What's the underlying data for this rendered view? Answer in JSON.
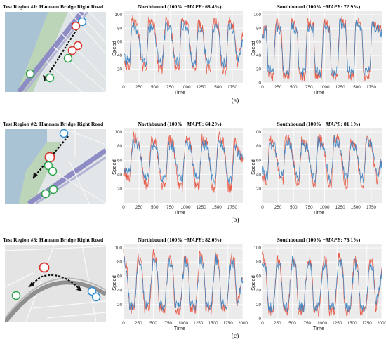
{
  "series_colors": {
    "ground_truth": "#e8533f",
    "prediction": "#3b84c2"
  },
  "regions": [
    {
      "title": "Test Region #1: Hannam Bridge Right Road",
      "caption": "(a)",
      "charts": [
        {
          "title": "Northbound (100% − MAPE: 68.4%)",
          "title_prefix": "Northbound (100%  −",
          "title_metric": "MAPE",
          "title_suffix": ": 68.4%)",
          "xlabel": "Time",
          "ylabel": "Speed",
          "xlim": [
            0,
            1920
          ],
          "ylim": [
            0,
            105
          ],
          "xticks": [
            0,
            250,
            500,
            750,
            1000,
            1250,
            1500,
            1750
          ],
          "yticks": [
            20,
            40,
            60,
            80,
            100
          ]
        },
        {
          "title": "Southbound (100% − MAPE: 72.9%)",
          "title_prefix": "Southbound (100%  −",
          "title_metric": "MAPE",
          "title_suffix": ": 72.9%)",
          "xlabel": "Time",
          "ylabel": "Speed",
          "xlim": [
            0,
            1920
          ],
          "ylim": [
            0,
            105
          ],
          "xticks": [
            0,
            250,
            500,
            750,
            1000,
            1250,
            1500,
            1750
          ],
          "yticks": [
            0,
            20,
            40,
            60,
            80,
            100
          ]
        }
      ]
    },
    {
      "title": "Test Region #2: Hannam Bridge Right Road",
      "caption": "(b)",
      "charts": [
        {
          "title": "Northbound (100% − MAPE: 64.2%)",
          "title_prefix": "Northbound (100%  −",
          "title_metric": "MAPE",
          "title_suffix": ": 64.2%)",
          "xlabel": "Time",
          "ylabel": "Speed",
          "xlim": [
            0,
            1920
          ],
          "ylim": [
            0,
            105
          ],
          "xticks": [
            0,
            250,
            500,
            750,
            1000,
            1250,
            1500,
            1750
          ],
          "yticks": [
            20,
            40,
            60,
            80,
            100
          ]
        },
        {
          "title": "Southbound (100% − MAPE: 81.1%)",
          "title_prefix": "Southbound (100%  −",
          "title_metric": "MAPE",
          "title_suffix": ": 81.1%)",
          "xlabel": "Time",
          "ylabel": "Speed",
          "xlim": [
            0,
            1920
          ],
          "ylim": [
            0,
            105
          ],
          "xticks": [
            0,
            250,
            500,
            750,
            1000,
            1250,
            1500,
            1750
          ],
          "yticks": [
            20,
            40,
            60,
            80,
            100
          ]
        }
      ]
    },
    {
      "title": "Test Region #3: Hannam Bridge Right Road",
      "caption": "(c)",
      "charts": [
        {
          "title": "Northbound (100% − MAPE: 82.0%)",
          "title_prefix": "Northbound (100%  −",
          "title_metric": "MAPE",
          "title_suffix": ": 82.0%)",
          "xlabel": "Time",
          "ylabel": "Speed",
          "xlim": [
            0,
            2000
          ],
          "ylim": [
            0,
            105
          ],
          "xticks": [
            0,
            250,
            500,
            750,
            1000,
            1250,
            1500,
            1750,
            2000
          ],
          "yticks": [
            20,
            40,
            60,
            80,
            100
          ]
        },
        {
          "title": "Southbound (100% − MAPE: 78.1%)",
          "title_prefix": "Southbound (100%  −",
          "title_metric": "MAPE",
          "title_suffix": ": 78.1%)",
          "xlabel": "Time",
          "ylabel": "Speed",
          "xlim": [
            0,
            2000
          ],
          "ylim": [
            0,
            105
          ],
          "xticks": [
            0,
            250,
            500,
            750,
            1000,
            1250,
            1500,
            1750,
            2000
          ],
          "yticks": [
            0,
            20,
            40,
            60,
            80,
            100
          ]
        }
      ]
    }
  ],
  "chart_data": [
    {
      "type": "line",
      "title": "Northbound (100% − MAPE: 68.4%)",
      "xlabel": "Time",
      "ylabel": "Speed",
      "xlim": [
        0,
        1920
      ],
      "ylim": [
        0,
        105
      ],
      "grid": true,
      "series": [
        {
          "color": "#e8533f",
          "x": [
            0,
            100,
            130,
            230,
            300,
            370,
            400,
            500,
            560,
            620,
            680,
            760,
            830,
            900,
            930,
            1040,
            1100,
            1160,
            1200,
            1270,
            1330,
            1400,
            1440,
            1530,
            1580,
            1650,
            1690,
            1780,
            1830,
            1920
          ],
          "y": [
            28,
            22,
            95,
            80,
            25,
            20,
            90,
            85,
            22,
            20,
            92,
            85,
            24,
            20,
            93,
            88,
            22,
            20,
            88,
            82,
            22,
            20,
            90,
            85,
            20,
            18,
            92,
            80,
            22,
            70
          ]
        },
        {
          "color": "#3b84c2",
          "x": [
            0,
            100,
            130,
            230,
            300,
            370,
            400,
            500,
            560,
            620,
            680,
            760,
            830,
            900,
            930,
            1040,
            1100,
            1160,
            1200,
            1270,
            1330,
            1400,
            1440,
            1530,
            1580,
            1650,
            1690,
            1780,
            1830,
            1920
          ],
          "y": [
            35,
            30,
            85,
            75,
            35,
            30,
            80,
            78,
            32,
            28,
            85,
            80,
            32,
            30,
            85,
            82,
            30,
            28,
            82,
            78,
            30,
            28,
            82,
            80,
            30,
            28,
            84,
            76,
            30,
            65
          ]
        }
      ]
    },
    {
      "type": "line",
      "title": "Southbound (100% − MAPE: 72.9%)",
      "xlabel": "Time",
      "ylabel": "Speed",
      "xlim": [
        0,
        1920
      ],
      "ylim": [
        0,
        105
      ],
      "grid": true,
      "series": [
        {
          "color": "#e8533f",
          "x": [
            0,
            60,
            90,
            180,
            210,
            300,
            330,
            430,
            460,
            560,
            590,
            690,
            720,
            820,
            850,
            950,
            980,
            1080,
            1110,
            1210,
            1240,
            1340,
            1370,
            1470,
            1500,
            1600,
            1630,
            1730,
            1760,
            1920
          ],
          "y": [
            72,
            85,
            15,
            10,
            92,
            80,
            12,
            10,
            90,
            80,
            12,
            10,
            88,
            82,
            12,
            10,
            90,
            80,
            10,
            12,
            95,
            85,
            12,
            10,
            90,
            82,
            10,
            12,
            88,
            78
          ]
        },
        {
          "color": "#3b84c2",
          "x": [
            0,
            60,
            90,
            180,
            210,
            300,
            330,
            430,
            460,
            560,
            590,
            690,
            720,
            820,
            850,
            950,
            980,
            1080,
            1110,
            1210,
            1240,
            1340,
            1370,
            1470,
            1500,
            1600,
            1630,
            1730,
            1760,
            1920
          ],
          "y": [
            68,
            80,
            20,
            15,
            85,
            75,
            18,
            15,
            85,
            76,
            18,
            15,
            84,
            78,
            18,
            15,
            85,
            76,
            15,
            18,
            88,
            80,
            18,
            15,
            85,
            78,
            15,
            18,
            84,
            74
          ]
        }
      ]
    },
    {
      "type": "line",
      "title": "Northbound (100% − MAPE: 64.2%)",
      "xlabel": "Time",
      "ylabel": "Speed",
      "xlim": [
        0,
        1920
      ],
      "ylim": [
        0,
        105
      ],
      "grid": true,
      "series": [
        {
          "color": "#e8533f",
          "x": [
            0,
            100,
            150,
            250,
            330,
            400,
            450,
            530,
            600,
            680,
            720,
            800,
            880,
            950,
            1000,
            1080,
            1150,
            1220,
            1260,
            1350,
            1420,
            1480,
            1520,
            1610,
            1680,
            1740,
            1780,
            1870,
            1920
          ],
          "y": [
            45,
            30,
            95,
            85,
            28,
            25,
            92,
            82,
            28,
            22,
            90,
            85,
            25,
            22,
            92,
            85,
            25,
            22,
            90,
            85,
            25,
            20,
            95,
            85,
            22,
            20,
            88,
            70,
            60
          ]
        },
        {
          "color": "#3b84c2",
          "x": [
            0,
            100,
            150,
            250,
            330,
            400,
            450,
            530,
            600,
            680,
            720,
            800,
            880,
            950,
            1000,
            1080,
            1150,
            1220,
            1260,
            1350,
            1420,
            1480,
            1520,
            1610,
            1680,
            1740,
            1780,
            1870,
            1920
          ],
          "y": [
            50,
            40,
            85,
            80,
            40,
            35,
            82,
            78,
            38,
            35,
            82,
            80,
            38,
            35,
            84,
            80,
            38,
            35,
            82,
            80,
            38,
            32,
            85,
            80,
            35,
            32,
            80,
            68,
            58
          ]
        }
      ]
    },
    {
      "type": "line",
      "title": "Southbound (100% − MAPE: 81.1%)",
      "xlabel": "Time",
      "ylabel": "Speed",
      "xlim": [
        0,
        1920
      ],
      "ylim": [
        0,
        105
      ],
      "grid": true,
      "series": [
        {
          "color": "#e8533f",
          "x": [
            0,
            80,
            110,
            200,
            280,
            330,
            370,
            460,
            540,
            590,
            630,
            720,
            800,
            850,
            890,
            980,
            1060,
            1110,
            1150,
            1240,
            1320,
            1370,
            1410,
            1500,
            1580,
            1630,
            1670,
            1760,
            1840,
            1920
          ],
          "y": [
            40,
            30,
            92,
            80,
            35,
            28,
            95,
            82,
            32,
            28,
            90,
            80,
            30,
            25,
            92,
            82,
            30,
            25,
            95,
            85,
            30,
            25,
            90,
            80,
            28,
            25,
            92,
            80,
            30,
            60
          ]
        },
        {
          "color": "#3b84c2",
          "x": [
            0,
            80,
            110,
            200,
            280,
            330,
            370,
            460,
            540,
            590,
            630,
            720,
            800,
            850,
            890,
            980,
            1060,
            1110,
            1150,
            1240,
            1320,
            1370,
            1410,
            1500,
            1580,
            1630,
            1670,
            1760,
            1840,
            1920
          ],
          "y": [
            45,
            38,
            85,
            78,
            40,
            36,
            88,
            80,
            40,
            36,
            84,
            78,
            38,
            34,
            86,
            80,
            38,
            34,
            88,
            82,
            38,
            34,
            84,
            78,
            36,
            34,
            86,
            78,
            38,
            58
          ]
        }
      ]
    },
    {
      "type": "line",
      "title": "Northbound (100% − MAPE: 82.0%)",
      "xlabel": "Time",
      "ylabel": "Speed",
      "xlim": [
        0,
        2000
      ],
      "ylim": [
        0,
        105
      ],
      "grid": true,
      "series": [
        {
          "color": "#e8533f",
          "x": [
            0,
            60,
            100,
            180,
            240,
            300,
            350,
            430,
            500,
            560,
            600,
            690,
            760,
            820,
            860,
            950,
            1020,
            1080,
            1120,
            1210,
            1280,
            1340,
            1380,
            1470,
            1540,
            1600,
            1640,
            1730,
            1800,
            1860,
            1900,
            2000
          ],
          "y": [
            90,
            70,
            15,
            12,
            85,
            80,
            15,
            12,
            92,
            78,
            15,
            12,
            90,
            80,
            15,
            12,
            88,
            80,
            15,
            12,
            92,
            80,
            15,
            12,
            90,
            80,
            15,
            12,
            88,
            80,
            15,
            60
          ]
        },
        {
          "color": "#3b84c2",
          "x": [
            0,
            60,
            100,
            180,
            240,
            300,
            350,
            430,
            500,
            560,
            600,
            690,
            760,
            820,
            860,
            950,
            1020,
            1080,
            1120,
            1210,
            1280,
            1340,
            1380,
            1470,
            1540,
            1600,
            1640,
            1730,
            1800,
            1860,
            1900,
            2000
          ],
          "y": [
            85,
            68,
            20,
            18,
            80,
            76,
            20,
            18,
            85,
            75,
            20,
            18,
            84,
            76,
            20,
            18,
            82,
            76,
            20,
            18,
            86,
            76,
            20,
            18,
            84,
            76,
            20,
            18,
            82,
            76,
            20,
            58
          ]
        }
      ]
    },
    {
      "type": "line",
      "title": "Southbound (100% − MAPE: 78.1%)",
      "xlabel": "Time",
      "ylabel": "Speed",
      "xlim": [
        0,
        2000
      ],
      "ylim": [
        0,
        105
      ],
      "grid": true,
      "series": [
        {
          "color": "#e8533f",
          "x": [
            0,
            60,
            100,
            180,
            240,
            300,
            350,
            430,
            500,
            560,
            600,
            690,
            760,
            820,
            860,
            950,
            1020,
            1080,
            1120,
            1210,
            1280,
            1340,
            1380,
            1470,
            1540,
            1600,
            1640,
            1730,
            1800,
            1860,
            1900,
            2000
          ],
          "y": [
            88,
            72,
            12,
            10,
            85,
            75,
            12,
            10,
            88,
            78,
            12,
            10,
            86,
            76,
            12,
            10,
            84,
            76,
            12,
            10,
            88,
            78,
            12,
            10,
            86,
            76,
            12,
            10,
            84,
            74,
            12,
            65
          ]
        },
        {
          "color": "#3b84c2",
          "x": [
            0,
            60,
            100,
            180,
            240,
            300,
            350,
            430,
            500,
            560,
            600,
            690,
            760,
            820,
            860,
            950,
            1020,
            1080,
            1120,
            1210,
            1280,
            1340,
            1380,
            1470,
            1540,
            1600,
            1640,
            1730,
            1800,
            1860,
            1900,
            2000
          ],
          "y": [
            82,
            70,
            18,
            15,
            80,
            72,
            18,
            15,
            82,
            74,
            18,
            15,
            80,
            72,
            18,
            15,
            80,
            72,
            18,
            15,
            82,
            74,
            18,
            15,
            80,
            72,
            18,
            15,
            80,
            70,
            18,
            62
          ]
        }
      ]
    }
  ]
}
